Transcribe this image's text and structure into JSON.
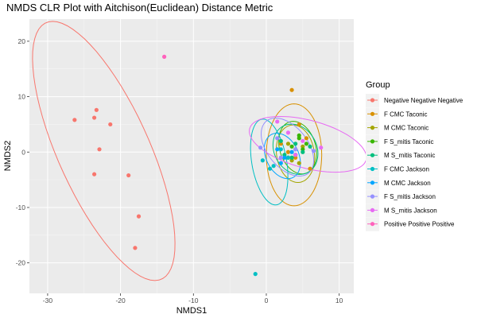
{
  "chart_data": {
    "type": "scatter",
    "title": "NMDS CLR Plot with Aitchison(Euclidean) Distance Metric",
    "xlabel": "NMDS1",
    "ylabel": "NMDS2",
    "xlim": [
      -32.5,
      12
    ],
    "ylim": [
      -25.5,
      24
    ],
    "xticks": [
      -30,
      -20,
      -10,
      0,
      10
    ],
    "yticks": [
      -20,
      -10,
      0,
      10,
      20
    ],
    "grid": true,
    "legend_title": "Group",
    "legend_position": "right",
    "series": [
      {
        "name": "Negative Negative Negative",
        "color": "#F8766D",
        "points": [
          [
            -26.3,
            5.8
          ],
          [
            -23.6,
            6.2
          ],
          [
            -23.3,
            7.6
          ],
          [
            -21.4,
            5.0
          ],
          [
            -22.9,
            0.5
          ],
          [
            -23.6,
            -4.0
          ],
          [
            -18.9,
            -4.2
          ],
          [
            -17.5,
            -11.6
          ],
          [
            -18.0,
            -17.3
          ]
        ],
        "ellipse": {
          "cx": -22.3,
          "cy": 0.2,
          "rx": 24.5,
          "ry": 6.5,
          "angle": -72
        }
      },
      {
        "name": "F CMC Taconic",
        "color": "#D89000",
        "points": [
          [
            3.5,
            11.2
          ],
          [
            4.5,
            5.0
          ],
          [
            2.0,
            1.5
          ],
          [
            3.0,
            0.0
          ],
          [
            4.0,
            -1.0
          ],
          [
            5.5,
            2.5
          ],
          [
            6.0,
            -3.0
          ]
        ],
        "ellipse": {
          "cx": 3.8,
          "cy": -0.5,
          "rx": 9.2,
          "ry": 3.8,
          "angle": -90
        }
      },
      {
        "name": "M CMC Taconic",
        "color": "#A3A500",
        "points": [
          [
            4.0,
            0.5
          ],
          [
            3.5,
            -1.5
          ],
          [
            5.0,
            1.0
          ],
          [
            4.5,
            -2.0
          ],
          [
            3.0,
            1.5
          ]
        ],
        "ellipse": {
          "cx": 4.0,
          "cy": -0.3,
          "rx": 5.2,
          "ry": 2.6,
          "angle": -85
        }
      },
      {
        "name": "F S_mitis Taconic",
        "color": "#39B600",
        "points": [
          [
            4.5,
            2.5
          ],
          [
            3.5,
            1.0
          ],
          [
            5.0,
            0.5
          ],
          [
            4.0,
            -0.5
          ],
          [
            5.5,
            1.5
          ],
          [
            3.0,
            -1.0
          ],
          [
            4.5,
            3.0
          ]
        ],
        "ellipse": {
          "cx": 4.3,
          "cy": 0.8,
          "rx": 4.8,
          "ry": 2.5,
          "angle": -80
        }
      },
      {
        "name": "M S_mitis Taconic",
        "color": "#00BF7D",
        "points": [
          [
            2.0,
            2.0
          ],
          [
            3.5,
            -1.0
          ],
          [
            5.0,
            0.0
          ],
          [
            4.0,
            1.5
          ],
          [
            6.0,
            1.0
          ],
          [
            2.5,
            -0.5
          ]
        ],
        "ellipse": {
          "cx": 4.0,
          "cy": 0.5,
          "rx": 4.6,
          "ry": 3.0,
          "angle": -78
        }
      },
      {
        "name": "F CMC Jackson",
        "color": "#00BFC4",
        "points": [
          [
            -1.5,
            -22.0
          ],
          [
            -0.5,
            -1.5
          ],
          [
            1.0,
            -2.5
          ],
          [
            2.0,
            0.5
          ],
          [
            0.5,
            -3.0
          ],
          [
            3.0,
            -1.0
          ]
        ],
        "ellipse": {
          "cx": 0.4,
          "cy": -1.8,
          "rx": 7.8,
          "ry": 2.4,
          "angle": -83
        }
      },
      {
        "name": "M CMC Jackson",
        "color": "#00A5FF",
        "points": [
          [
            1.5,
            0.5
          ],
          [
            2.5,
            -1.0
          ],
          [
            3.5,
            0.0
          ],
          [
            2.0,
            -2.0
          ]
        ],
        "ellipse": {
          "cx": 2.2,
          "cy": -0.7,
          "rx": 4.2,
          "ry": 2.3,
          "angle": -75
        }
      },
      {
        "name": "F S_mitis Jackson",
        "color": "#9590FF",
        "points": [
          [
            -0.8,
            0.8
          ],
          [
            1.5,
            2.5
          ],
          [
            4.0,
            0.5
          ],
          [
            6.5,
            0.2
          ],
          [
            2.0,
            -1.0
          ]
        ],
        "ellipse": {
          "cx": 2.9,
          "cy": 0.9,
          "rx": 5.6,
          "ry": 3.0,
          "angle": -65
        }
      },
      {
        "name": "M S_mitis Jackson",
        "color": "#E76BF3",
        "points": [
          [
            1.5,
            5.5
          ],
          [
            3.0,
            3.5
          ],
          [
            5.0,
            2.0
          ],
          [
            7.5,
            0.8
          ],
          [
            4.0,
            -0.5
          ]
        ],
        "ellipse": {
          "cx": 5.7,
          "cy": 1.4,
          "rx": 8.5,
          "ry": 4.2,
          "angle": -22
        }
      },
      {
        "name": "Positive Positive Positive",
        "color": "#FF62BC",
        "points": [
          [
            -14.0,
            17.2
          ]
        ],
        "ellipse": null
      }
    ]
  }
}
